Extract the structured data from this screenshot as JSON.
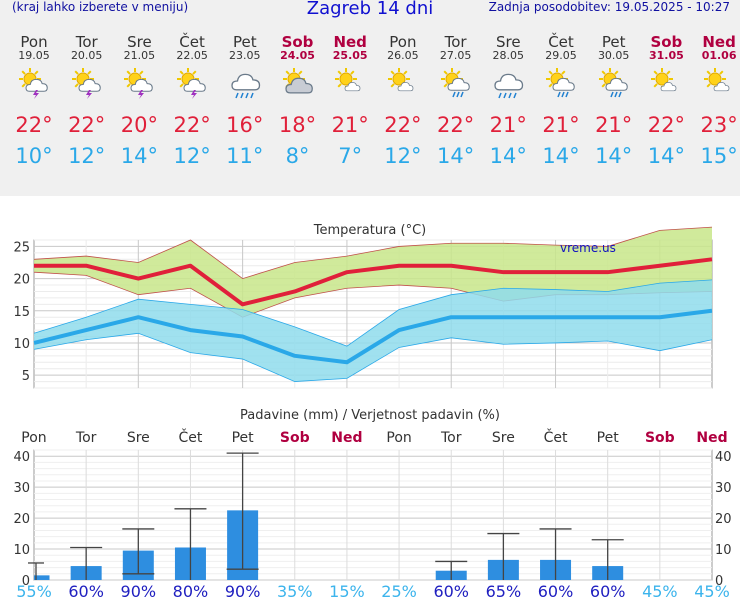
{
  "header": {
    "left_note": "(kraj lahko izberete v meniju)",
    "title": "Zagreb 14 dni",
    "updated": "Zadnja posodobitev: 19.05.2025 - 10:27"
  },
  "days": [
    {
      "name": "Pon",
      "date": "19.05",
      "weekend": false,
      "icon": "sun-cloud-thunder-icon",
      "tmax": 22,
      "tmin": 10,
      "precip_prob": 55
    },
    {
      "name": "Tor",
      "date": "20.05",
      "weekend": false,
      "icon": "sun-cloud-thunder-icon",
      "tmax": 22,
      "tmin": 12,
      "precip_prob": 60
    },
    {
      "name": "Sre",
      "date": "21.05",
      "weekend": false,
      "icon": "sun-cloud-thunder-icon",
      "tmax": 20,
      "tmin": 14,
      "precip_prob": 90
    },
    {
      "name": "Čet",
      "date": "22.05",
      "weekend": false,
      "icon": "sun-cloud-thunder-icon",
      "tmax": 22,
      "tmin": 12,
      "precip_prob": 80
    },
    {
      "name": "Pet",
      "date": "23.05",
      "weekend": false,
      "icon": "cloud-rain-icon",
      "tmax": 16,
      "tmin": 11,
      "precip_prob": 90
    },
    {
      "name": "Sob",
      "date": "24.05",
      "weekend": true,
      "icon": "sun-cloud-icon",
      "tmax": 18,
      "tmin": 8,
      "precip_prob": 35
    },
    {
      "name": "Ned",
      "date": "25.05",
      "weekend": true,
      "icon": "sun-small-cloud-icon",
      "tmax": 21,
      "tmin": 7,
      "precip_prob": 15
    },
    {
      "name": "Pon",
      "date": "26.05",
      "weekend": false,
      "icon": "sun-small-cloud-icon",
      "tmax": 22,
      "tmin": 12,
      "precip_prob": 25
    },
    {
      "name": "Tor",
      "date": "27.05",
      "weekend": false,
      "icon": "sun-cloud-rain-icon",
      "tmax": 22,
      "tmin": 14,
      "precip_prob": 60
    },
    {
      "name": "Sre",
      "date": "28.05",
      "weekend": false,
      "icon": "cloud-rain-icon",
      "tmax": 21,
      "tmin": 14,
      "precip_prob": 65
    },
    {
      "name": "Čet",
      "date": "29.05",
      "weekend": false,
      "icon": "sun-cloud-rain-icon",
      "tmax": 21,
      "tmin": 14,
      "precip_prob": 60
    },
    {
      "name": "Pet",
      "date": "30.05",
      "weekend": false,
      "icon": "sun-cloud-rain-icon",
      "tmax": 21,
      "tmin": 14,
      "precip_prob": 60
    },
    {
      "name": "Sob",
      "date": "31.05",
      "weekend": true,
      "icon": "sun-small-cloud-icon",
      "tmax": 22,
      "tmin": 14,
      "precip_prob": 45
    },
    {
      "name": "Ned",
      "date": "01.06",
      "weekend": true,
      "icon": "sun-small-cloud-icon",
      "tmax": 23,
      "tmin": 15,
      "precip_prob": 45
    }
  ],
  "units": {
    "degree": "°",
    "percent": "%"
  },
  "colors": {
    "tmax": "#e0203a",
    "tmin": "#2aa8e8",
    "max_band": "#c8e68a",
    "min_band": "#8fdcec",
    "bar": "#2e8ee0",
    "weekend": "#b00040",
    "prob_high": "#2020c0",
    "prob_low": "#3cb4ec"
  },
  "chart_data": [
    {
      "type": "line",
      "title": "Temperatura (°C)",
      "watermark": "vreme.us",
      "ylim": [
        3,
        26
      ],
      "yticks": [
        5,
        10,
        15,
        20,
        25
      ],
      "grid": true,
      "x": [
        "19.05",
        "20.05",
        "21.05",
        "22.05",
        "23.05",
        "24.05",
        "25.05",
        "26.05",
        "27.05",
        "28.05",
        "29.05",
        "30.05",
        "31.05",
        "01.06"
      ],
      "series": [
        {
          "values": [
            22,
            22,
            20,
            22,
            16,
            18,
            21,
            22,
            22,
            21,
            21,
            21,
            22,
            23
          ]
        },
        {
          "values": [
            10,
            12,
            14,
            12,
            11,
            8,
            7,
            12,
            14,
            14,
            14,
            14,
            14,
            15
          ]
        }
      ],
      "bands": [
        {
          "upper": [
            23,
            23.5,
            22.5,
            26,
            20,
            22.5,
            23.5,
            25,
            25.5,
            25.5,
            25.2,
            25,
            27.5,
            28
          ],
          "lower": [
            21,
            20.5,
            17.5,
            18.5,
            14,
            17,
            18.5,
            19,
            18.5,
            16.5,
            17.5,
            17.5,
            17.8,
            18
          ]
        },
        {
          "upper": [
            11.5,
            14,
            16.8,
            16,
            15.2,
            12.5,
            9.5,
            15.2,
            17.5,
            18.5,
            18.3,
            18,
            19.3,
            19.8
          ],
          "lower": [
            9,
            10.5,
            11.5,
            8.5,
            7.5,
            4,
            4.5,
            9.3,
            10.8,
            9.8,
            10,
            10.3,
            8.8,
            10.5
          ]
        }
      ]
    },
    {
      "type": "bar",
      "title": "Padavine (mm) / Verjetnost padavin (%)",
      "ylim": [
        0,
        42
      ],
      "yticks": [
        0,
        10,
        20,
        30,
        40
      ],
      "categories": [
        "Pon",
        "Tor",
        "Sre",
        "Čet",
        "Pet",
        "Sob",
        "Ned",
        "Pon",
        "Tor",
        "Sre",
        "Čet",
        "Pet",
        "Sob",
        "Ned"
      ],
      "values": [
        1.5,
        4.5,
        9.5,
        10.5,
        22.5,
        0,
        0,
        0,
        3,
        6.5,
        6.5,
        4.5,
        0,
        0
      ],
      "error_high": [
        5.5,
        10.5,
        16.5,
        23,
        41,
        0,
        0,
        0,
        6,
        15,
        16.5,
        13,
        0,
        0
      ],
      "error_low": [
        0,
        0,
        2,
        0,
        3.5,
        0,
        0,
        0,
        0,
        0,
        0,
        0,
        0,
        0
      ]
    }
  ]
}
